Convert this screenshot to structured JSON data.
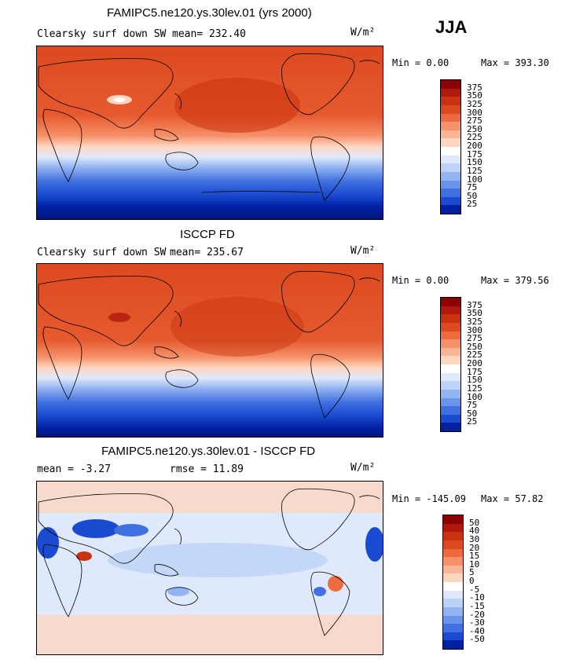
{
  "season": "JJA",
  "panels": [
    {
      "title": "FAMIPC5.ne120.ys.30lev.01 (yrs 2000)",
      "variable": "Clearsky surf down SW",
      "mean_text": "mean= 232.40",
      "units": "W/m²",
      "min_text": "Min =    0.00",
      "max_text": "Max = 393.30",
      "colorbar": {
        "levels": [
          "375",
          "350",
          "325",
          "300",
          "275",
          "250",
          "225",
          "200",
          "175",
          "150",
          "125",
          "100",
          "75",
          "50",
          "25"
        ],
        "colors": [
          "#8b0000",
          "#b01a0b",
          "#c8320f",
          "#dc4a1f",
          "#ee6a3f",
          "#f6926a",
          "#fab496",
          "#fdd6c0",
          "#ffffff",
          "#dfe9fb",
          "#bcd2f8",
          "#93b4f2",
          "#6a93ea",
          "#4170e0",
          "#1a4ad0",
          "#0020a0"
        ]
      }
    },
    {
      "title": "ISCCP FD",
      "variable": "Clearsky surf down SW",
      "mean_text": "mean= 235.67",
      "units": "W/m²",
      "min_text": "Min =    0.00",
      "max_text": "Max = 379.56",
      "colorbar": {
        "levels": [
          "375",
          "350",
          "325",
          "300",
          "275",
          "250",
          "225",
          "200",
          "175",
          "150",
          "125",
          "100",
          "75",
          "50",
          "25"
        ],
        "colors": [
          "#8b0000",
          "#b01a0b",
          "#c8320f",
          "#dc4a1f",
          "#ee6a3f",
          "#f6926a",
          "#fab496",
          "#fdd6c0",
          "#ffffff",
          "#dfe9fb",
          "#bcd2f8",
          "#93b4f2",
          "#6a93ea",
          "#4170e0",
          "#1a4ad0",
          "#0020a0"
        ]
      }
    },
    {
      "title": "FAMIPC5.ne120.ys.30lev.01 - ISCCP FD",
      "mean_text": "mean =   -3.27",
      "rmse_text": "rmse =   11.89",
      "units": "W/m²",
      "min_text": "Min = -145.09",
      "max_text": "Max =  57.82",
      "colorbar": {
        "levels": [
          "50",
          "40",
          "30",
          "20",
          "15",
          "10",
          "5",
          "0",
          "-5",
          "-10",
          "-15",
          "-20",
          "-30",
          "-40",
          "-50"
        ],
        "colors": [
          "#8b0000",
          "#b01a0b",
          "#c8320f",
          "#dc4a1f",
          "#ee6a3f",
          "#f6926a",
          "#fab496",
          "#fdd6c0",
          "#ffffff",
          "#dfe9fb",
          "#bcd2f8",
          "#93b4f2",
          "#6a93ea",
          "#4170e0",
          "#1a4ad0",
          "#0020a0"
        ]
      }
    }
  ]
}
